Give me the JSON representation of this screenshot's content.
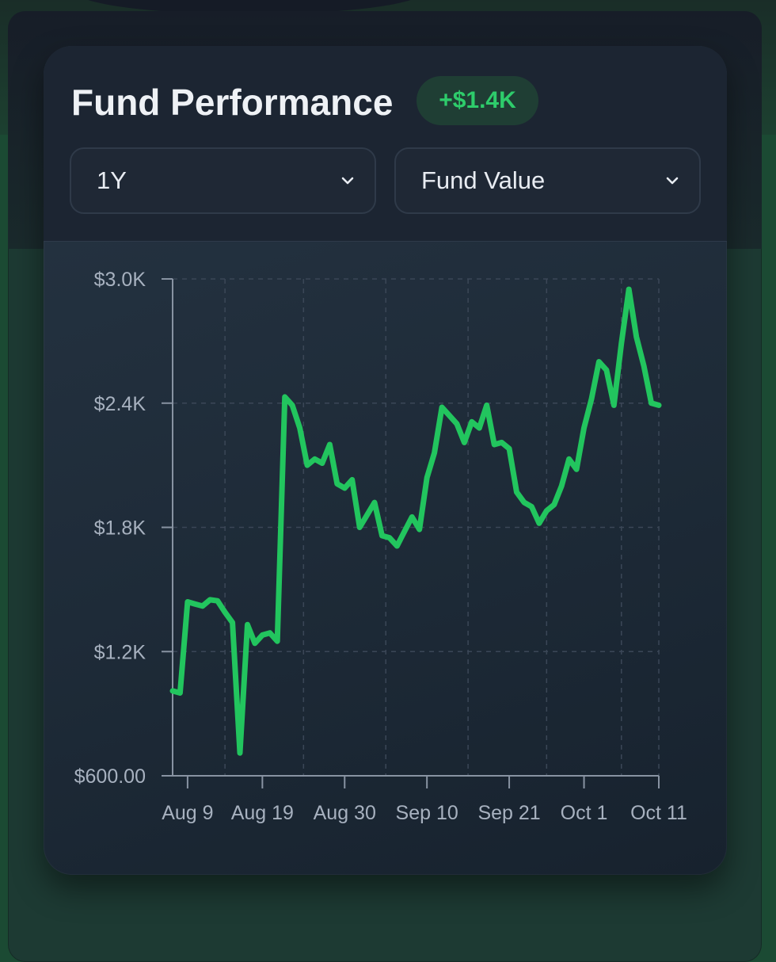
{
  "card": {
    "title": "Fund Performance",
    "change_badge": "+$1.4K"
  },
  "controls": {
    "range_select": {
      "value": "1Y"
    },
    "metric_select": {
      "value": "Fund Value"
    }
  },
  "colors": {
    "line": "#22c55e",
    "badge_text": "#2ecc6b",
    "badge_bg": "#1f3e34",
    "axis_text": "#a7b1bf"
  },
  "chart_data": {
    "type": "line",
    "title": "",
    "xlabel": "",
    "ylabel": "",
    "ylim": [
      600,
      3000
    ],
    "y_ticks": [
      600,
      1200,
      1800,
      2400,
      3000
    ],
    "y_tick_labels": [
      "$600.00",
      "$1.2K",
      "$1.8K",
      "$2.4K",
      "$3.0K"
    ],
    "x_tick_labels": [
      "Aug 9",
      "Aug 19",
      "Aug 30",
      "Sep 10",
      "Sep 21",
      "Oct 1",
      "Oct 11"
    ],
    "x_tick_dates": [
      "2024-08-09",
      "2024-08-19",
      "2024-08-30",
      "2024-09-10",
      "2024-09-21",
      "2024-10-01",
      "2024-10-11"
    ],
    "grid": true,
    "series": [
      {
        "values": [
          [
            "2024-08-07",
            1010
          ],
          [
            "2024-08-08",
            1000
          ],
          [
            "2024-08-09",
            1440
          ],
          [
            "2024-08-10",
            1430
          ],
          [
            "2024-08-11",
            1420
          ],
          [
            "2024-08-12",
            1450
          ],
          [
            "2024-08-13",
            1445
          ],
          [
            "2024-08-14",
            1390
          ],
          [
            "2024-08-15",
            1340
          ],
          [
            "2024-08-16",
            710
          ],
          [
            "2024-08-17",
            1330
          ],
          [
            "2024-08-18",
            1240
          ],
          [
            "2024-08-19",
            1280
          ],
          [
            "2024-08-20",
            1290
          ],
          [
            "2024-08-21",
            1250
          ],
          [
            "2024-08-22",
            2430
          ],
          [
            "2024-08-23",
            2390
          ],
          [
            "2024-08-24",
            2280
          ],
          [
            "2024-08-25",
            2100
          ],
          [
            "2024-08-26",
            2130
          ],
          [
            "2024-08-27",
            2110
          ],
          [
            "2024-08-28",
            2200
          ],
          [
            "2024-08-29",
            2010
          ],
          [
            "2024-08-30",
            1990
          ],
          [
            "2024-08-31",
            2030
          ],
          [
            "2024-09-01",
            1800
          ],
          [
            "2024-09-02",
            1860
          ],
          [
            "2024-09-03",
            1920
          ],
          [
            "2024-09-04",
            1760
          ],
          [
            "2024-09-05",
            1750
          ],
          [
            "2024-09-06",
            1710
          ],
          [
            "2024-09-07",
            1780
          ],
          [
            "2024-09-08",
            1850
          ],
          [
            "2024-09-09",
            1790
          ],
          [
            "2024-09-10",
            2040
          ],
          [
            "2024-09-11",
            2160
          ],
          [
            "2024-09-12",
            2380
          ],
          [
            "2024-09-13",
            2340
          ],
          [
            "2024-09-14",
            2300
          ],
          [
            "2024-09-15",
            2210
          ],
          [
            "2024-09-16",
            2310
          ],
          [
            "2024-09-17",
            2280
          ],
          [
            "2024-09-18",
            2390
          ],
          [
            "2024-09-19",
            2200
          ],
          [
            "2024-09-20",
            2210
          ],
          [
            "2024-09-21",
            2180
          ],
          [
            "2024-09-22",
            1970
          ],
          [
            "2024-09-23",
            1920
          ],
          [
            "2024-09-24",
            1900
          ],
          [
            "2024-09-25",
            1820
          ],
          [
            "2024-09-26",
            1880
          ],
          [
            "2024-09-27",
            1910
          ],
          [
            "2024-09-28",
            2000
          ],
          [
            "2024-09-29",
            2130
          ],
          [
            "2024-09-30",
            2080
          ],
          [
            "2024-10-01",
            2280
          ],
          [
            "2024-10-02",
            2420
          ],
          [
            "2024-10-03",
            2600
          ],
          [
            "2024-10-04",
            2560
          ],
          [
            "2024-10-05",
            2390
          ],
          [
            "2024-10-06",
            2690
          ],
          [
            "2024-10-07",
            2950
          ],
          [
            "2024-10-08",
            2720
          ],
          [
            "2024-10-09",
            2580
          ],
          [
            "2024-10-10",
            2400
          ],
          [
            "2024-10-11",
            2390
          ]
        ]
      }
    ]
  }
}
